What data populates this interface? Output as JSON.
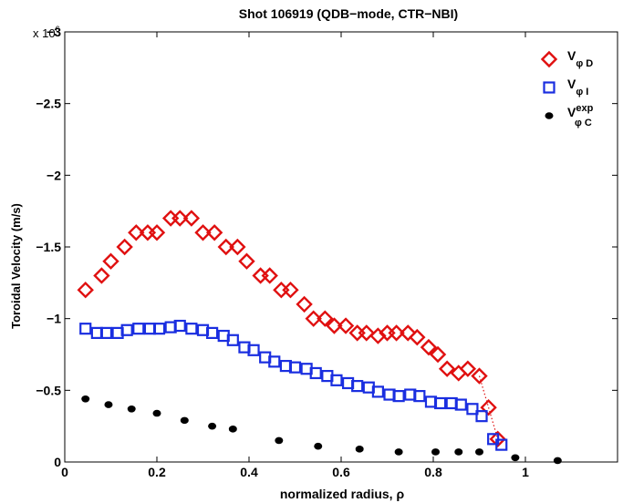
{
  "chart_data": {
    "type": "scatter",
    "title": "Shot 106919 (QDB−mode, CTR−NBI)",
    "xlabel": "normalized radius, ρ",
    "ylabel": "Toroidal Velocity (m/s)",
    "y_multiplier_label": "x 10",
    "y_multiplier_exponent": "6",
    "xlim": [
      0,
      1.2
    ],
    "ylim": [
      0,
      -3
    ],
    "y_reversed": true,
    "x_ticks": [
      0,
      0.2,
      0.4,
      0.6,
      0.8,
      1
    ],
    "x_tick_labels": [
      "0",
      "0.2",
      "0.4",
      "0.6",
      "0.8",
      "1"
    ],
    "y_ticks": [
      0,
      -0.5,
      -1,
      -1.5,
      -2,
      -2.5,
      -3
    ],
    "y_tick_labels": [
      "0",
      "−0.5",
      "−1",
      "−1.5",
      "−2",
      "−2.5",
      "−3"
    ],
    "grid": false,
    "legend_position": "top-right",
    "series": [
      {
        "name_main": "V",
        "name_sub": "φ D",
        "name_sup": "",
        "marker": "diamond",
        "color": "#e01010",
        "x": [
          0.045,
          0.08,
          0.1,
          0.13,
          0.155,
          0.18,
          0.2,
          0.23,
          0.25,
          0.275,
          0.3,
          0.325,
          0.35,
          0.375,
          0.395,
          0.425,
          0.445,
          0.47,
          0.49,
          0.52,
          0.54,
          0.565,
          0.585,
          0.61,
          0.635,
          0.655,
          0.68,
          0.7,
          0.72,
          0.745,
          0.765,
          0.79,
          0.81,
          0.83,
          0.855,
          0.875,
          0.9,
          0.92,
          0.94
        ],
        "y": [
          -1.2,
          -1.3,
          -1.4,
          -1.5,
          -1.6,
          -1.6,
          -1.6,
          -1.7,
          -1.7,
          -1.7,
          -1.6,
          -1.6,
          -1.5,
          -1.5,
          -1.4,
          -1.3,
          -1.3,
          -1.2,
          -1.2,
          -1.1,
          -1.0,
          -1.0,
          -0.95,
          -0.95,
          -0.9,
          -0.9,
          -0.88,
          -0.9,
          -0.9,
          -0.9,
          -0.87,
          -0.8,
          -0.75,
          -0.65,
          -0.62,
          -0.65,
          -0.6,
          -0.38,
          -0.16
        ]
      },
      {
        "name_main": "V",
        "name_sub": "φ I",
        "name_sup": "",
        "marker": "square",
        "color": "#1a2ee0",
        "x": [
          0.045,
          0.07,
          0.09,
          0.115,
          0.135,
          0.16,
          0.185,
          0.205,
          0.23,
          0.25,
          0.275,
          0.3,
          0.32,
          0.345,
          0.365,
          0.39,
          0.41,
          0.435,
          0.455,
          0.48,
          0.5,
          0.525,
          0.545,
          0.57,
          0.59,
          0.615,
          0.635,
          0.66,
          0.68,
          0.705,
          0.725,
          0.75,
          0.77,
          0.795,
          0.815,
          0.84,
          0.86,
          0.885,
          0.905,
          0.93,
          0.948
        ],
        "y": [
          -0.93,
          -0.9,
          -0.9,
          -0.9,
          -0.92,
          -0.93,
          -0.93,
          -0.93,
          -0.94,
          -0.95,
          -0.93,
          -0.92,
          -0.9,
          -0.88,
          -0.85,
          -0.8,
          -0.78,
          -0.73,
          -0.7,
          -0.67,
          -0.66,
          -0.65,
          -0.62,
          -0.6,
          -0.57,
          -0.55,
          -0.53,
          -0.52,
          -0.49,
          -0.47,
          -0.46,
          -0.47,
          -0.46,
          -0.42,
          -0.41,
          -0.41,
          -0.4,
          -0.37,
          -0.32,
          -0.16,
          -0.12
        ]
      },
      {
        "name_main": "V",
        "name_sub": "φ C",
        "name_sup": "exp",
        "marker": "dot",
        "color": "#000000",
        "x": [
          0.045,
          0.095,
          0.145,
          0.2,
          0.26,
          0.32,
          0.365,
          0.465,
          0.55,
          0.64,
          0.725,
          0.805,
          0.855,
          0.9,
          0.978,
          1.07
        ],
        "y": [
          -0.44,
          -0.4,
          -0.37,
          -0.34,
          -0.29,
          -0.25,
          -0.23,
          -0.15,
          -0.11,
          -0.09,
          -0.07,
          -0.07,
          -0.07,
          -0.07,
          -0.03,
          -0.01
        ]
      }
    ]
  }
}
